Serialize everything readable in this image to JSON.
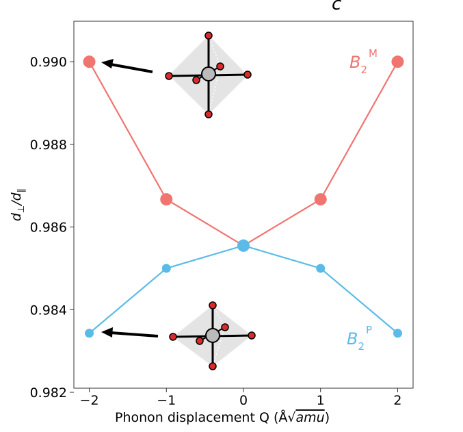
{
  "chart_data": {
    "type": "line",
    "panel_label": "c",
    "xlabel_text": "Phonon displacement Q (Å",
    "xlabel_unit": "amu",
    "xlabel_close": ")",
    "ylabel_main": "d",
    "ylabel_sub1": "⊥",
    "ylabel_mid": "/d",
    "ylabel_sub2": "∥",
    "x": [
      -2,
      -1,
      0,
      1,
      2
    ],
    "x_tick_labels": [
      "−2",
      "−1",
      "0",
      "1",
      "2"
    ],
    "y_ticks": [
      0.982,
      0.984,
      0.986,
      0.988,
      0.99
    ],
    "y_tick_labels": [
      "0.982",
      "0.984",
      "0.986",
      "0.988",
      "0.990"
    ],
    "xlim": [
      -2.2,
      2.2
    ],
    "ylim": [
      0.9821,
      0.99098
    ],
    "grid": false,
    "series": [
      {
        "name_base": "B",
        "name_sub": "2",
        "name_sup": "M",
        "color": "#f07470",
        "values": [
          0.99,
          0.98667,
          0.98555,
          0.98667,
          0.99
        ]
      },
      {
        "name_base": "B",
        "name_sub": "2",
        "name_sup": "P",
        "color": "#5bbbe8",
        "values": [
          0.98343,
          0.985,
          0.98555,
          0.985,
          0.98343
        ]
      }
    ],
    "insets": [
      {
        "name": "upper-octahedron",
        "points_to_series": 0
      },
      {
        "name": "lower-octahedron",
        "points_to_series": 1
      }
    ],
    "colors": {
      "atom_center": "#bbbbbb",
      "atom_ligand": "#d92b2b",
      "octahedron_face": "#dddddd"
    }
  }
}
